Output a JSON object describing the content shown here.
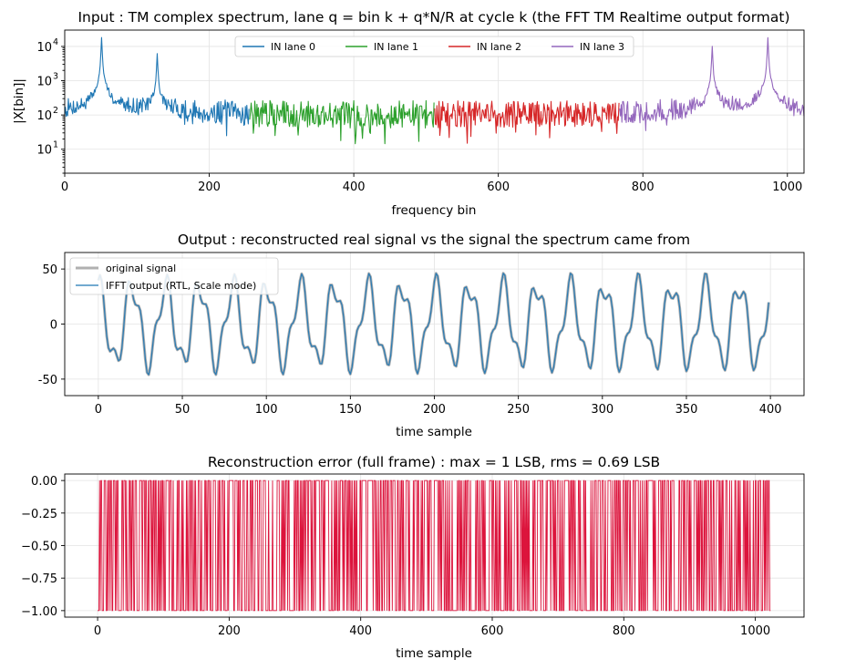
{
  "chart_data": [
    {
      "type": "line",
      "title": "Input : TM complex spectrum, lane q = bin k + q*N/R at cycle k (the FFT TM Realtime output format)",
      "xlabel": "frequency bin",
      "ylabel": "|X[bin]|",
      "xlim": [
        0,
        1023
      ],
      "ylim": [
        2,
        30000
      ],
      "yscale": "log",
      "xticks": [
        0,
        200,
        400,
        600,
        800,
        1000
      ],
      "yticks": [
        10,
        100,
        1000,
        10000
      ],
      "ytick_labels": [
        "10",
        "10",
        "10",
        "10"
      ],
      "ytick_exponents": [
        "1",
        "2",
        "3",
        "4"
      ],
      "grid": true,
      "legend": "top-center",
      "noise_floor": 90,
      "peaks": [
        {
          "bin": 51,
          "value": 18000
        },
        {
          "bin": 128,
          "value": 6000
        },
        {
          "bin": 896,
          "value": 10000
        },
        {
          "bin": 973,
          "value": 18000
        }
      ],
      "series": [
        {
          "name": "IN lane 0",
          "color": "#1f77b4",
          "range": [
            0,
            255
          ]
        },
        {
          "name": "IN lane 1",
          "color": "#2ca02c",
          "range": [
            256,
            511
          ]
        },
        {
          "name": "IN lane 2",
          "color": "#d62728",
          "range": [
            512,
            767
          ]
        },
        {
          "name": "IN lane 3",
          "color": "#9467bd",
          "range": [
            768,
            1023
          ]
        }
      ]
    },
    {
      "type": "line",
      "title": "Output : reconstructed real signal vs the signal the spectrum came from",
      "xlabel": "time sample",
      "ylabel": "",
      "xlim": [
        -20,
        420
      ],
      "ylim": [
        -65,
        65
      ],
      "xticks": [
        0,
        50,
        100,
        150,
        200,
        250,
        300,
        350,
        400
      ],
      "yticks": [
        -50,
        0,
        50
      ],
      "grid": true,
      "legend": "top-left",
      "samples": 400,
      "components": [
        {
          "amplitude": 35,
          "cycles_per_1024": 51
        },
        {
          "amplitude": 12,
          "cycles_per_1024": 128
        }
      ],
      "series": [
        {
          "name": "original signal",
          "color": "#b0b0b0"
        },
        {
          "name": "IFFT output (RTL, Scale mode)",
          "color": "#1f77b4"
        }
      ]
    },
    {
      "type": "line",
      "title": "Reconstruction error (full frame) : max = 1 LSB, rms = 0.69 LSB",
      "xlabel": "time sample",
      "ylabel": "",
      "xlim": [
        -50,
        1074
      ],
      "ylim": [
        -1.05,
        0.05
      ],
      "xticks": [
        0,
        200,
        400,
        600,
        800,
        1000
      ],
      "yticks": [
        0.0,
        -0.25,
        -0.5,
        -0.75,
        -1.0
      ],
      "ytick_labels": [
        "0.00",
        "−0.25",
        "−0.50",
        "−0.75",
        "−1.00"
      ],
      "grid": true,
      "samples": 1024,
      "values_set": [
        0,
        -1
      ],
      "fraction_at_minus_one": 0.48,
      "series": [
        {
          "name": "",
          "color": "#dc143c"
        }
      ]
    }
  ]
}
